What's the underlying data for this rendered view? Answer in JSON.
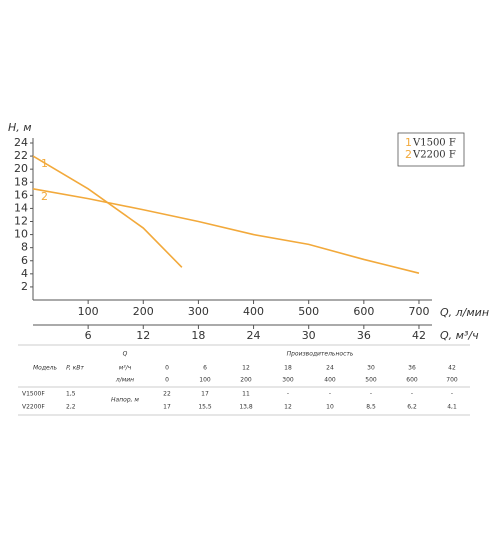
{
  "chart_data": {
    "type": "line",
    "y_label": "H, м",
    "x_label": "Q, л/мин",
    "x2_label": "Q, м³/ч",
    "curve_labels": [
      "1",
      "2"
    ],
    "series": [
      {
        "name": "V1500 F",
        "color": "#f2a93b",
        "x": [
          0,
          100,
          200,
          270
        ],
        "values": [
          22,
          17,
          11,
          5
        ]
      },
      {
        "name": "V2200 F",
        "color": "#f2a93b",
        "x": [
          0,
          100,
          200,
          300,
          400,
          500,
          600,
          700
        ],
        "values": [
          17,
          15.5,
          13.8,
          12,
          10,
          8.5,
          6.2,
          4.1
        ]
      }
    ],
    "xlim": [
      0,
      720
    ],
    "xticks": [
      100,
      200,
      300,
      400,
      500,
      600,
      700
    ],
    "x2lim": [
      0,
      43.2
    ],
    "x2ticks": [
      6,
      12,
      18,
      24,
      30,
      36,
      42
    ],
    "ylim": [
      0,
      24
    ],
    "yticks": [
      2,
      4,
      6,
      8,
      10,
      12,
      14,
      16,
      18,
      20,
      22,
      24
    ]
  },
  "table": {
    "model_header": "Модель",
    "power_header": "P, кВт",
    "q_header": "Q",
    "flow_header": "Производительность",
    "unit_m3h": "м³/ч",
    "unit_lmin": "л/мин",
    "head_label": "Напор, м",
    "flow_m3h": [
      "0",
      "6",
      "12",
      "18",
      "24",
      "30",
      "36",
      "42"
    ],
    "flow_lmin": [
      "0",
      "100",
      "200",
      "300",
      "400",
      "500",
      "600",
      "700"
    ],
    "rows": [
      {
        "model": "V1500F",
        "power": "1,5",
        "head": [
          "22",
          "17",
          "11",
          "-",
          "-",
          "-",
          "-",
          "-"
        ]
      },
      {
        "model": "V2200F",
        "power": "2,2",
        "head": [
          "17",
          "15,5",
          "13,8",
          "12",
          "10",
          "8,5",
          "6,2",
          "4,1"
        ]
      }
    ]
  }
}
